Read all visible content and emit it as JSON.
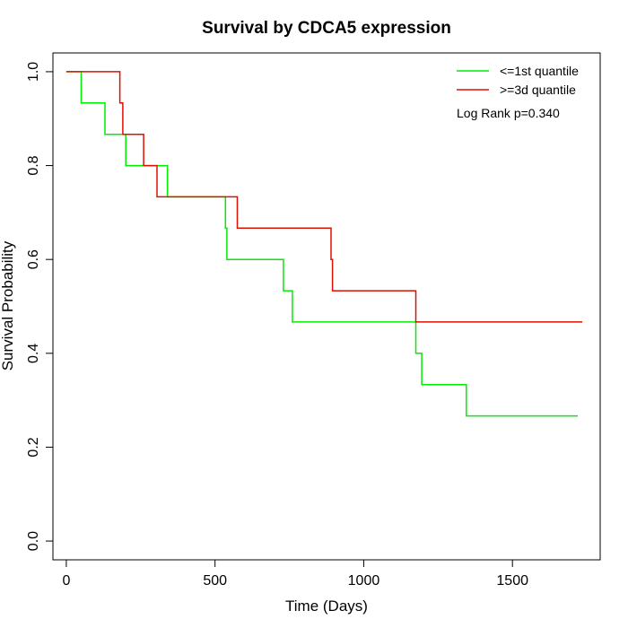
{
  "chart_data": {
    "type": "line",
    "step": true,
    "title": "Survival by CDCA5 expression",
    "xlabel": "Time (Days)",
    "ylabel": "Survival Probability",
    "xlim": [
      -45,
      1795
    ],
    "ylim": [
      -0.04,
      1.04
    ],
    "x_ticks": [
      0,
      500,
      1000,
      1500
    ],
    "y_ticks": [
      0.0,
      0.2,
      0.4,
      0.6,
      0.8,
      1.0
    ],
    "y_tick_labels": [
      "0.0",
      "0.2",
      "0.4",
      "0.6",
      "0.8",
      "1.0"
    ],
    "grid": false,
    "legend_position": "top-right",
    "annotation": "Log Rank p=0.340",
    "series": [
      {
        "name": "<=1st quantile",
        "color": "#00ee00",
        "points": [
          [
            0,
            1.0
          ],
          [
            50,
            1.0
          ],
          [
            50,
            0.9333
          ],
          [
            130,
            0.9333
          ],
          [
            130,
            0.8667
          ],
          [
            200,
            0.8667
          ],
          [
            200,
            0.8
          ],
          [
            340,
            0.8
          ],
          [
            340,
            0.7333
          ],
          [
            535,
            0.7333
          ],
          [
            535,
            0.6667
          ],
          [
            540,
            0.6667
          ],
          [
            540,
            0.6
          ],
          [
            730,
            0.6
          ],
          [
            730,
            0.5333
          ],
          [
            760,
            0.5333
          ],
          [
            760,
            0.4667
          ],
          [
            1175,
            0.4667
          ],
          [
            1175,
            0.4
          ],
          [
            1195,
            0.4
          ],
          [
            1195,
            0.3333
          ],
          [
            1345,
            0.3333
          ],
          [
            1345,
            0.2667
          ],
          [
            1720,
            0.2667
          ]
        ]
      },
      {
        "name": ">=3d quantile",
        "color": "#dd1100",
        "points": [
          [
            0,
            1.0
          ],
          [
            180,
            1.0
          ],
          [
            180,
            0.9333
          ],
          [
            190,
            0.9333
          ],
          [
            190,
            0.8667
          ],
          [
            260,
            0.8667
          ],
          [
            260,
            0.8
          ],
          [
            305,
            0.8
          ],
          [
            305,
            0.7333
          ],
          [
            575,
            0.7333
          ],
          [
            575,
            0.6667
          ],
          [
            890,
            0.6667
          ],
          [
            890,
            0.6
          ],
          [
            895,
            0.6
          ],
          [
            895,
            0.5333
          ],
          [
            1175,
            0.5333
          ],
          [
            1175,
            0.4667
          ],
          [
            1735,
            0.4667
          ]
        ]
      }
    ]
  }
}
